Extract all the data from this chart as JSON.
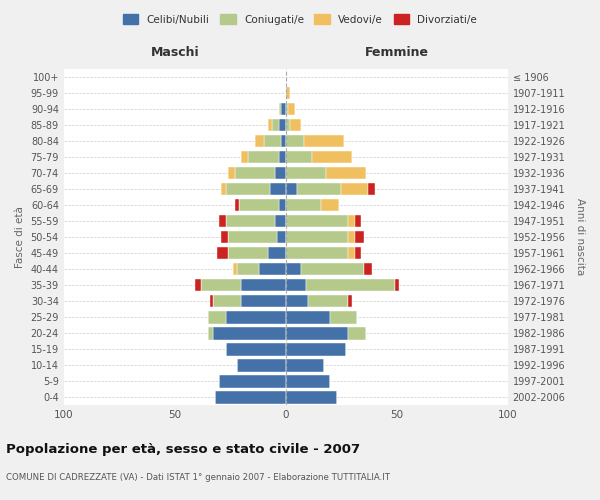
{
  "age_groups": [
    "100+",
    "95-99",
    "90-94",
    "85-89",
    "80-84",
    "75-79",
    "70-74",
    "65-69",
    "60-64",
    "55-59",
    "50-54",
    "45-49",
    "40-44",
    "35-39",
    "30-34",
    "25-29",
    "20-24",
    "15-19",
    "10-14",
    "5-9",
    "0-4"
  ],
  "birth_years": [
    "≤ 1906",
    "1907-1911",
    "1912-1916",
    "1917-1921",
    "1922-1926",
    "1927-1931",
    "1932-1936",
    "1937-1941",
    "1942-1946",
    "1947-1951",
    "1952-1956",
    "1957-1961",
    "1962-1966",
    "1967-1971",
    "1972-1976",
    "1977-1981",
    "1982-1986",
    "1987-1991",
    "1992-1996",
    "1997-2001",
    "2002-2006"
  ],
  "maschi_celibi": [
    0,
    0,
    2,
    3,
    2,
    3,
    5,
    7,
    3,
    5,
    4,
    8,
    12,
    20,
    20,
    27,
    33,
    27,
    22,
    30,
    32
  ],
  "maschi_coniugati": [
    0,
    0,
    1,
    3,
    8,
    14,
    18,
    20,
    18,
    22,
    22,
    18,
    10,
    18,
    13,
    8,
    2,
    0,
    0,
    0,
    0
  ],
  "maschi_vedovi": [
    0,
    0,
    0,
    2,
    4,
    3,
    3,
    2,
    0,
    0,
    0,
    0,
    2,
    0,
    0,
    0,
    0,
    0,
    0,
    0,
    0
  ],
  "maschi_divorziati": [
    0,
    0,
    0,
    0,
    0,
    0,
    0,
    0,
    2,
    3,
    3,
    5,
    0,
    3,
    1,
    0,
    0,
    0,
    0,
    0,
    0
  ],
  "femmine_nubili": [
    0,
    0,
    0,
    0,
    0,
    0,
    0,
    5,
    0,
    0,
    0,
    0,
    7,
    9,
    10,
    20,
    28,
    27,
    17,
    20,
    23
  ],
  "femmine_coniugate": [
    0,
    0,
    1,
    2,
    8,
    12,
    18,
    20,
    16,
    28,
    28,
    28,
    28,
    40,
    18,
    12,
    8,
    0,
    0,
    0,
    0
  ],
  "femmine_vedove": [
    0,
    2,
    3,
    5,
    18,
    18,
    18,
    12,
    8,
    3,
    3,
    3,
    0,
    0,
    0,
    0,
    0,
    0,
    0,
    0,
    0
  ],
  "femmine_divorziate": [
    0,
    0,
    0,
    0,
    0,
    0,
    0,
    3,
    0,
    3,
    4,
    3,
    4,
    2,
    2,
    0,
    0,
    0,
    0,
    0,
    0
  ],
  "colors": {
    "celibi_nubili": "#4472a8",
    "coniugati": "#b5c98a",
    "vedovi": "#f0c060",
    "divorziati": "#cc2222"
  },
  "xlim": 100,
  "title": "Popolazione per età, sesso e stato civile - 2007",
  "subtitle": "COMUNE DI CADREZZATE (VA) - Dati ISTAT 1° gennaio 2007 - Elaborazione TUTTITALIA.IT",
  "xlabel_left": "Maschi",
  "xlabel_right": "Femmine",
  "ylabel_left": "Fasce di età",
  "ylabel_right": "Anni di nascita",
  "legend_labels": [
    "Celibi/Nubili",
    "Coniugati/e",
    "Vedovi/e",
    "Divorziati/e"
  ],
  "bg_color": "#f0f0f0",
  "plot_bg": "#ffffff"
}
